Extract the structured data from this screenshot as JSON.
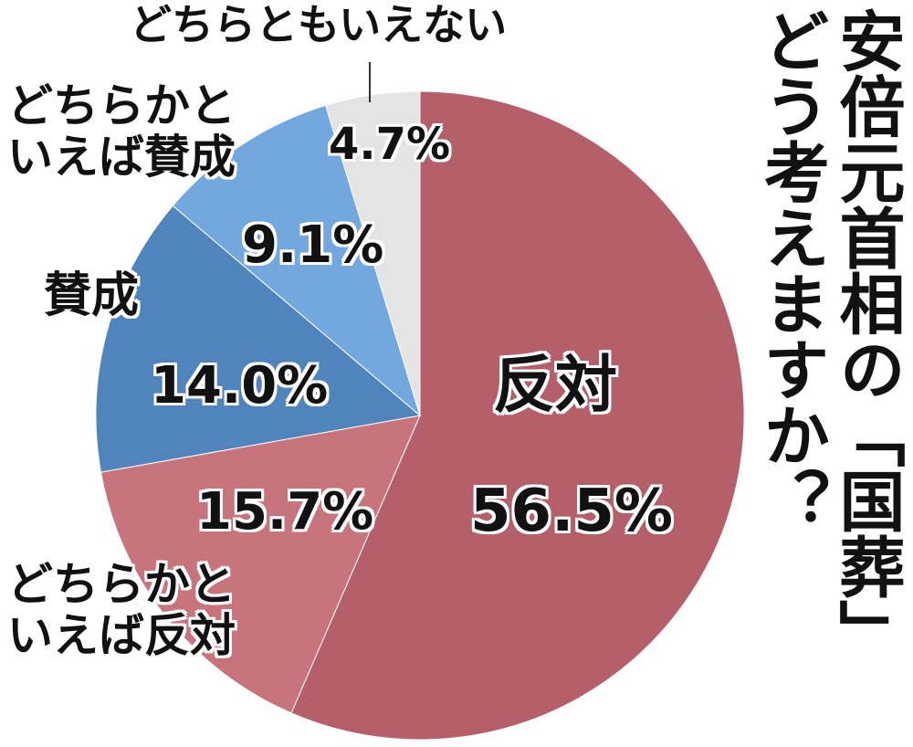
{
  "chart_data": {
    "type": "pie",
    "title": "安倍元首相の「国葬」どう考えますか？",
    "categories": [
      "反対",
      "どちらかといえば反対",
      "賛成",
      "どちらかといえば賛成",
      "どちらともいえない"
    ],
    "values": [
      56.5,
      15.7,
      14.0,
      9.1,
      4.7
    ],
    "value_labels": [
      "56.5%",
      "15.7%",
      "14.0%",
      "9.1%",
      "4.7%"
    ],
    "colors": [
      "#b45f69",
      "#c8747c",
      "#4f84bd",
      "#72a8de",
      "#e4e4e4"
    ]
  }
}
